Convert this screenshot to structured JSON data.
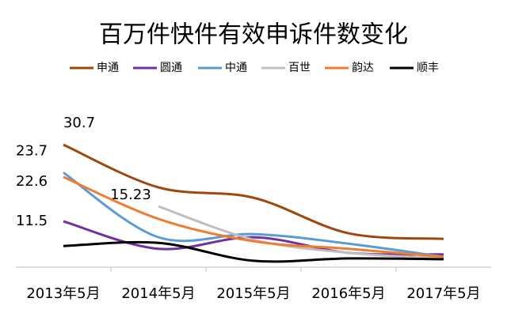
{
  "chart_data": {
    "type": "line",
    "title": "百万件快件有效申诉件数变化",
    "categories": [
      "2013年5月",
      "2014年5月",
      "2015年5月",
      "2016年5月",
      "2017年5月"
    ],
    "ylim": [
      0,
      40
    ],
    "series": [
      {
        "name": "申通",
        "color": "#9e480e",
        "values": [
          30.7,
          20,
          17.4,
          8.5,
          7.1
        ],
        "label_points": [
          0
        ]
      },
      {
        "name": "圆通",
        "color": "#7030a0",
        "values": [
          11.5,
          4.6,
          7.5,
          3.6,
          3.2
        ],
        "label_points": [
          0
        ]
      },
      {
        "name": "中通",
        "color": "#5b9bd5",
        "values": [
          23.7,
          7.5,
          8.3,
          5.9,
          2.6
        ],
        "label_points": [
          0
        ]
      },
      {
        "name": "百世",
        "color": "#bfbfbf",
        "values": [
          null,
          15.23,
          6.9,
          3.6,
          2.2
        ],
        "label_points": [
          1
        ]
      },
      {
        "name": "韵达",
        "color": "#ed7d31",
        "values": [
          22.6,
          12.1,
          6.5,
          4.6,
          2.6
        ],
        "label_points": [
          0
        ]
      },
      {
        "name": "顺丰",
        "color": "#000000",
        "values": [
          5.3,
          6.1,
          1.6,
          2.2,
          2.0
        ],
        "label_points": []
      }
    ]
  }
}
